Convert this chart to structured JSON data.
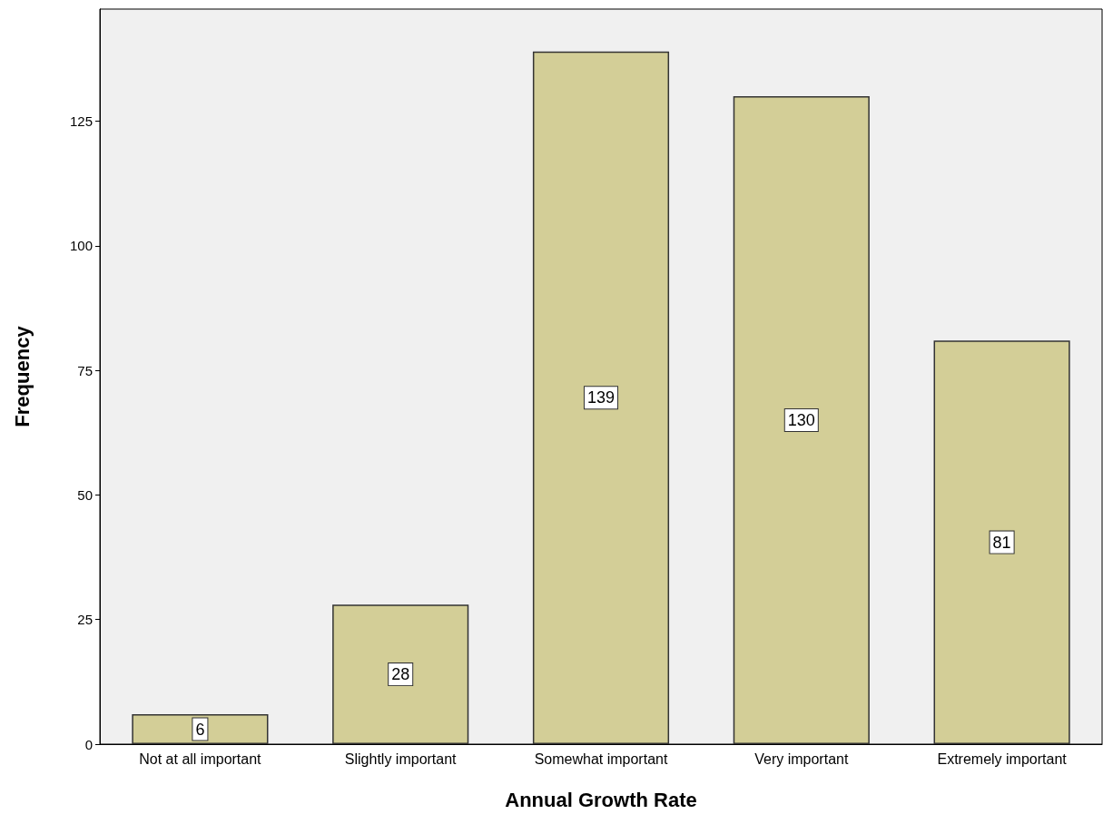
{
  "chart_data": {
    "type": "bar",
    "xlabel": "Annual Growth Rate",
    "ylabel": "Frequency",
    "categories": [
      "Not at all important",
      "Slightly important",
      "Somewhat important",
      "Very important",
      "Extremely important"
    ],
    "values": [
      6,
      28,
      139,
      130,
      81
    ],
    "color": "#d3ce97",
    "ylim": [
      0,
      147.5
    ],
    "yticks": [
      0,
      25,
      50,
      75,
      100,
      125
    ],
    "data_labels": true,
    "grid": false
  }
}
